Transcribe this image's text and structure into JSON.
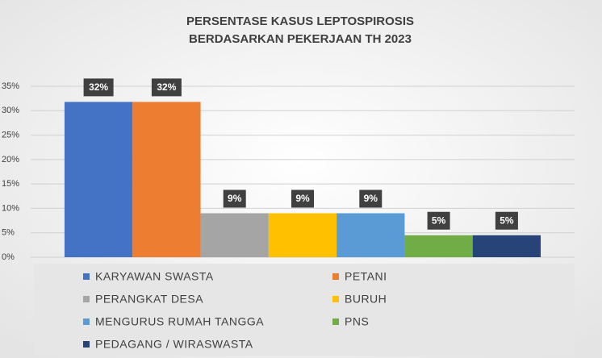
{
  "chart_data": {
    "type": "bar",
    "title": [
      "PERSENTASE KASUS LEPTOSPIROSIS",
      "BERDASARKAN PEKERJAAN TH 2023"
    ],
    "series": [
      {
        "name": "KARYAWAN SWASTA",
        "color": "#4472c4",
        "values": [
          31.8
        ],
        "value_labels": [
          "32%"
        ]
      },
      {
        "name": "PETANI",
        "color": "#ed7d31",
        "values": [
          31.8
        ],
        "value_labels": [
          "32%"
        ]
      },
      {
        "name": "PERANGKAT DESA",
        "color": "#a5a5a5",
        "values": [
          9
        ],
        "value_labels": [
          "9%"
        ]
      },
      {
        "name": "BURUH",
        "color": "#ffc000",
        "values": [
          9
        ],
        "value_labels": [
          "9%"
        ]
      },
      {
        "name": "MENGURUS RUMAH TANGGA",
        "color": "#5b9bd5",
        "values": [
          9
        ],
        "value_labels": [
          "9%"
        ]
      },
      {
        "name": "PNS",
        "color": "#70ad47",
        "values": [
          4.5
        ],
        "value_labels": [
          "5%"
        ]
      },
      {
        "name": "PEDAGANG / WIRASWASTA",
        "color": "#264478",
        "values": [
          4.5
        ],
        "value_labels": [
          "5%"
        ]
      }
    ],
    "ylim": [
      0,
      35
    ],
    "yticks": [
      {
        "value": 0,
        "label": "0%"
      },
      {
        "value": 5,
        "label": "5%"
      },
      {
        "value": 10,
        "label": "10%"
      },
      {
        "value": 15,
        "label": "15%"
      },
      {
        "value": 20,
        "label": "20%"
      },
      {
        "value": 25,
        "label": "25%"
      },
      {
        "value": 30,
        "label": "30%"
      },
      {
        "value": 35,
        "label": "35%"
      }
    ],
    "grid": true,
    "legend": "bottom"
  }
}
